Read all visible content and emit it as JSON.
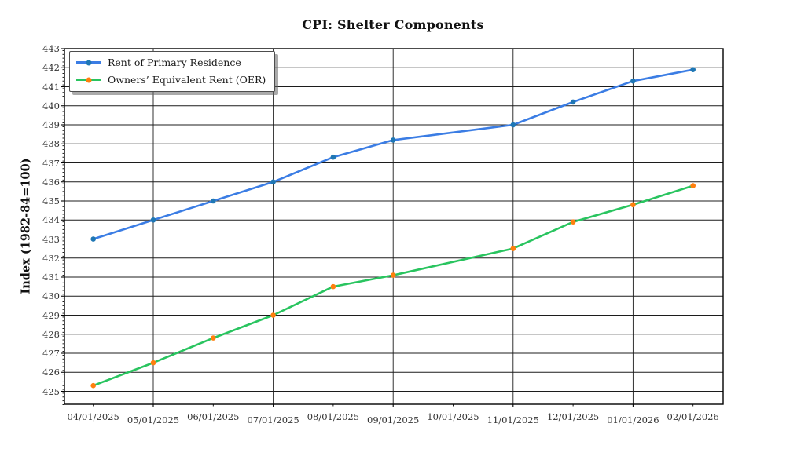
{
  "chart_data": {
    "type": "line",
    "title": "CPI: Shelter Components",
    "ylabel": "Index (1982-84=100)",
    "xlabel": "",
    "grid": true,
    "legend_position": "upper-left",
    "x_tick_labels": [
      "04/01/2025",
      "05/01/2025",
      "06/01/2025",
      "07/01/2025",
      "08/01/2025",
      "09/01/2025",
      "10/01/2025",
      "11/01/2025",
      "12/01/2025",
      "01/01/2026",
      "02/01/2026"
    ],
    "x_major_gridline_labels": [
      "05/01/2025",
      "07/01/2025",
      "09/01/2025",
      "11/01/2025",
      "01/01/2026"
    ],
    "y_ticks": [
      425,
      426,
      427,
      428,
      429,
      430,
      431,
      432,
      433,
      434,
      435,
      436,
      437,
      438,
      439,
      440,
      441,
      442,
      443
    ],
    "ylim": [
      424.3,
      443
    ],
    "y_minor_step": 0.2,
    "series": [
      {
        "name": "Rent of Primary Residence",
        "color": "#3b7de4",
        "marker_color": "#1f77b4",
        "dates": [
          "04/01/2025",
          "05/01/2025",
          "06/01/2025",
          "07/01/2025",
          "08/01/2025",
          "09/01/2025",
          "11/01/2025",
          "12/01/2025",
          "01/01/2026",
          "02/01/2026"
        ],
        "values": [
          433.0,
          434.0,
          435.0,
          436.0,
          437.3,
          438.2,
          439.0,
          440.2,
          441.3,
          441.9
        ]
      },
      {
        "name": "Owners’ Equivalent Rent (OER)",
        "color": "#29c45f",
        "marker_color": "#ff7f0e",
        "dates": [
          "04/01/2025",
          "05/01/2025",
          "06/01/2025",
          "07/01/2025",
          "08/01/2025",
          "09/01/2025",
          "11/01/2025",
          "12/01/2025",
          "01/01/2026",
          "02/01/2026"
        ],
        "values": [
          425.3,
          426.5,
          427.8,
          429.0,
          430.5,
          431.1,
          432.5,
          433.9,
          434.8,
          435.8
        ]
      }
    ]
  }
}
